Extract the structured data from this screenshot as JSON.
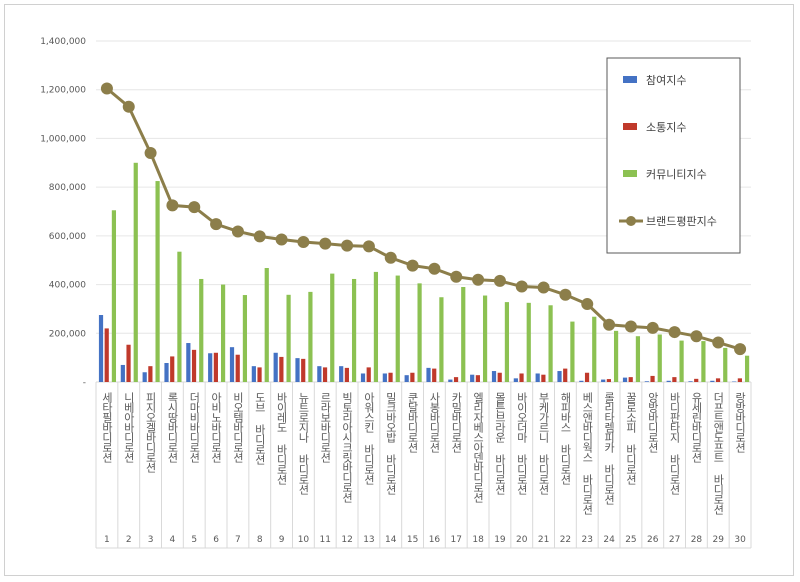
{
  "chart_data": {
    "type": "bar",
    "title": "",
    "xlabel": "",
    "ylabel": "",
    "ylim": [
      0,
      1400000
    ],
    "yticks": [
      "-",
      "200,000",
      "400,000",
      "600,000",
      "800,000",
      "1,000,000",
      "1,200,000",
      "1,400,000"
    ],
    "ytick_values": [
      0,
      200000,
      400000,
      600000,
      800000,
      1000000,
      1200000,
      1400000
    ],
    "grid": true,
    "legend_position": "top-right",
    "ranks": [
      "1",
      "2",
      "3",
      "4",
      "5",
      "6",
      "7",
      "8",
      "9",
      "10",
      "11",
      "12",
      "13",
      "14",
      "15",
      "16",
      "17",
      "18",
      "19",
      "20",
      "21",
      "22",
      "23",
      "24",
      "25",
      "26",
      "27",
      "28",
      "29",
      "30"
    ],
    "categories": [
      "세타필바디로션",
      "니베아바디로션",
      "피지오겔바디로션",
      "록시땅바디로션",
      "더마비바디로션",
      "아비노바디로션",
      "비오템바디로션",
      "도브 바디로션",
      "바이레도 바디로션",
      "뉴트로지나 바디로션",
      "르라보바디로션",
      "빅토리아시크릿바디로션",
      "아워스킨 바디로션",
      "밀크바오밥 바디로션",
      "쿤달바디로션",
      "사봉바디로션",
      "카밀바디로션",
      "엘리자베스아덴바디로션",
      "몰튼브라운 바디로션",
      "바이오더마 바디로션",
      "부케가르니 바디로션",
      "해피바스 바디로션",
      "베스앤바디웍스 바디로션",
      "롤리타렘피카 바디로션",
      "꿀로소피 바디로션",
      "앙방바디로션",
      "바디판타지 바디로션",
      "유세린바디로션",
      "더프트앤도프트 바디로션",
      "랑방바디로션"
    ],
    "series": [
      {
        "name": "참여지수",
        "type": "bar",
        "color": "#4472c4",
        "values": [
          275000,
          70000,
          40000,
          78000,
          160000,
          118000,
          143000,
          65000,
          120000,
          98000,
          65000,
          65000,
          35000,
          35000,
          28000,
          58000,
          10000,
          30000,
          45000,
          15000,
          35000,
          45000,
          5000,
          10000,
          18000,
          3000,
          5000,
          3000,
          5000,
          2000
        ]
      },
      {
        "name": "소통지수",
        "type": "bar",
        "color": "#c0392b",
        "values": [
          220000,
          153000,
          65000,
          105000,
          132000,
          120000,
          112000,
          60000,
          103000,
          95000,
          60000,
          58000,
          60000,
          38000,
          38000,
          55000,
          20000,
          28000,
          38000,
          35000,
          30000,
          55000,
          38000,
          12000,
          20000,
          25000,
          20000,
          13000,
          15000,
          15000
        ]
      },
      {
        "name": "커뮤니티지수",
        "type": "bar",
        "color": "#8cc152",
        "values": [
          705000,
          900000,
          825000,
          535000,
          423000,
          400000,
          357000,
          468000,
          358000,
          370000,
          445000,
          423000,
          452000,
          437000,
          405000,
          348000,
          390000,
          355000,
          328000,
          325000,
          315000,
          248000,
          268000,
          210000,
          188000,
          195000,
          170000,
          168000,
          140000,
          108000
        ]
      },
      {
        "name": "브랜드평판지수",
        "type": "line",
        "color": "#8c7e4a",
        "values": [
          1205000,
          1130000,
          940000,
          725000,
          718000,
          648000,
          618000,
          598000,
          585000,
          575000,
          568000,
          560000,
          557000,
          510000,
          478000,
          465000,
          432000,
          420000,
          415000,
          392000,
          388000,
          358000,
          320000,
          235000,
          228000,
          222000,
          205000,
          188000,
          162000,
          135000
        ]
      }
    ]
  }
}
